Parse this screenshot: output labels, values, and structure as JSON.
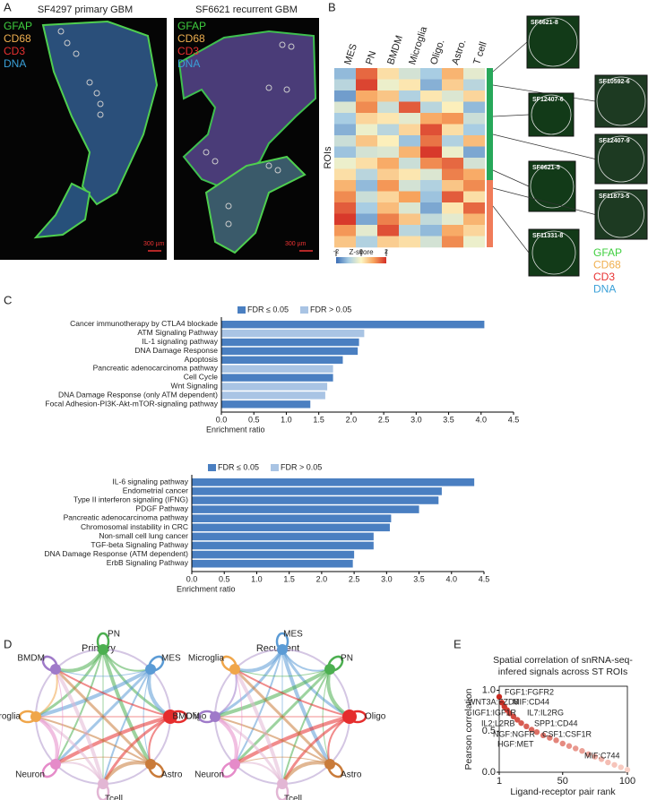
{
  "panel_labels": [
    "A",
    "B",
    "C",
    "D",
    "E"
  ],
  "panel_a": {
    "channels": [
      "GFAP",
      "CD68",
      "CD3",
      "DNA"
    ],
    "images": [
      {
        "title": "SF4297 primary GBM",
        "scale_bar": "300 µm"
      },
      {
        "title": "SF6621 recurrent GBM",
        "scale_bar": "300 µm"
      }
    ]
  },
  "panel_b": {
    "insets": [
      "SF6621-8",
      "SF10592-6",
      "SF12407-6",
      "SF12407-9",
      "SF6621-5",
      "SF11873-5",
      "SF11331-8"
    ],
    "channels": [
      "GFAP",
      "CD68",
      "CD3",
      "DNA"
    ]
  },
  "panel_d": {
    "networks": [
      {
        "title": "Primary",
        "nodes": [
          "PN",
          "MES",
          "Oligo",
          "Astro",
          "Tcell",
          "Neuron",
          "Microglia",
          "BMDM"
        ]
      },
      {
        "title": "Recurrent",
        "nodes": [
          "MES",
          "PN",
          "Oligo",
          "Astro",
          "Tcell",
          "Neuron",
          "BMDM",
          "Microglia"
        ]
      }
    ]
  },
  "chart_data": [
    {
      "type": "heatmap",
      "columns": [
        "MES",
        "PN",
        "BMDM",
        "Microglia",
        "Oligo.",
        "Astro.",
        "T cell"
      ],
      "ylabel": "ROIs",
      "colorbar_title": "Z-score",
      "zlim": [
        -2,
        2
      ],
      "zticks": [
        -2,
        0,
        2
      ],
      "values": [
        [
          -1.2,
          1.5,
          0.3,
          -0.5,
          -1.0,
          0.8,
          -0.3
        ],
        [
          -0.8,
          1.8,
          -0.2,
          0.2,
          -1.3,
          0.5,
          -0.8
        ],
        [
          -1.5,
          0.9,
          0.6,
          -0.9,
          0.2,
          -0.4,
          0.4
        ],
        [
          -0.4,
          1.2,
          -0.6,
          1.6,
          -0.8,
          0.1,
          -1.2
        ],
        [
          -1.0,
          0.4,
          0.2,
          -0.3,
          0.9,
          1.1,
          -0.6
        ],
        [
          -1.3,
          -0.2,
          -0.8,
          0.4,
          1.7,
          0.3,
          -1.0
        ],
        [
          -0.6,
          0.6,
          0.1,
          -1.1,
          1.4,
          -0.9,
          0.7
        ],
        [
          -1.1,
          -0.5,
          -0.4,
          0.8,
          1.9,
          -0.2,
          -1.4
        ],
        [
          -0.2,
          0.3,
          0.9,
          -0.6,
          1.2,
          1.5,
          -0.5
        ],
        [
          0.3,
          -0.8,
          0.5,
          0.2,
          -0.4,
          1.3,
          0.9
        ],
        [
          0.8,
          -1.2,
          1.1,
          -0.5,
          -0.9,
          0.6,
          1.2
        ],
        [
          1.2,
          -0.6,
          0.4,
          1.0,
          -1.1,
          1.6,
          0.3
        ],
        [
          1.6,
          -1.0,
          0.7,
          -0.4,
          -1.4,
          0.2,
          1.5
        ],
        [
          1.9,
          -1.4,
          1.3,
          0.6,
          -0.7,
          -0.3,
          0.8
        ],
        [
          1.1,
          -0.3,
          1.7,
          -0.8,
          -1.2,
          0.9,
          0.4
        ],
        [
          0.6,
          -0.9,
          0.5,
          0.3,
          -0.5,
          1.2,
          -0.2
        ]
      ]
    },
    {
      "type": "barh",
      "xlabel": "Enrichment ratio",
      "categories": [
        "Cancer immunotherapy by CTLA4 blockade",
        "ATM Signaling Pathway",
        "IL-1 signaling pathway",
        "DNA Damage Response",
        "Apoptosis",
        "Pancreatic adenocarcinoma pathway",
        "Cell Cycle",
        "Wnt Signaling",
        "DNA Damage Response (only ATM dependent)",
        "Focal Adhesion-PI3K-Akt-mTOR-signaling pathway"
      ],
      "series": [
        {
          "name": "FDR ≤ 0.05",
          "color": "#4a7fc1",
          "values": [
            4.05,
            null,
            2.12,
            2.1,
            1.87,
            null,
            1.72,
            null,
            null,
            1.37
          ]
        },
        {
          "name": "FDR > 0.05",
          "color": "#a9c4e4",
          "values": [
            null,
            2.2,
            null,
            null,
            null,
            1.72,
            null,
            1.63,
            1.6,
            null
          ]
        }
      ],
      "xlim": [
        0,
        4.5
      ],
      "xticks": [
        {
          "value": 0,
          "label": "0.0"
        },
        0.5,
        {
          "value": 1,
          "label": "1.0"
        },
        1.5,
        {
          "value": 2,
          "label": "2.0"
        },
        2.5,
        {
          "value": 3,
          "label": "3.0"
        },
        3.5,
        {
          "value": 4,
          "label": "4.0"
        },
        4.5
      ]
    },
    {
      "type": "barh",
      "xlabel": "Enrichment ratio",
      "categories": [
        "IL-6 signaling pathway",
        "Endometrial cancer",
        "Type II interferon signaling (IFNG)",
        "PDGF Pathway",
        "Pancreatic adenocarcinoma pathway",
        "Chromosomal instability in CRC",
        "Non-small cell lung cancer",
        "TGF-beta Signaling Pathway",
        "DNA Damage Response (ATM dependent)",
        "ErbB Signaling Pathway"
      ],
      "series": [
        {
          "name": "FDR ≤ 0.05",
          "color": "#4a7fc1",
          "values": [
            4.35,
            3.85,
            3.8,
            3.5,
            3.07,
            3.05,
            2.8,
            2.8,
            2.5,
            2.48
          ]
        },
        {
          "name": "FDR > 0.05",
          "color": "#a9c4e4",
          "values": [
            null,
            null,
            null,
            null,
            null,
            null,
            null,
            null,
            null,
            null
          ]
        }
      ],
      "xlim": [
        0,
        4.5
      ],
      "xticks": [
        {
          "value": 0,
          "label": "0.0"
        },
        0.5,
        {
          "value": 1,
          "label": "1.0"
        },
        1.5,
        {
          "value": 2,
          "label": "2.0"
        },
        2.5,
        {
          "value": 3,
          "label": "3.0"
        },
        3.5,
        {
          "value": 4,
          "label": "4.0"
        },
        4.5
      ]
    },
    {
      "type": "scatter",
      "title": [
        "Spatial correlation of snRNA-seq-",
        "infered signals across ST ROIs"
      ],
      "xlabel": "Ligand-receptor pair rank",
      "ylabel": "Pearson correlation",
      "x": [
        1,
        3,
        5,
        7,
        9,
        12,
        15,
        18,
        22,
        26,
        30,
        35,
        40,
        45,
        50,
        55,
        60,
        65,
        70,
        75,
        80,
        85,
        90,
        95,
        100
      ],
      "values": [
        0.92,
        0.85,
        0.8,
        0.76,
        0.72,
        0.68,
        0.64,
        0.6,
        0.56,
        0.52,
        0.49,
        0.45,
        0.42,
        0.39,
        0.35,
        0.32,
        0.29,
        0.26,
        0.22,
        0.19,
        0.16,
        0.12,
        0.09,
        0.06,
        0.03
      ],
      "xlim": [
        1,
        100
      ],
      "xticks": [
        1,
        50,
        100
      ],
      "ylim": [
        0,
        1.05
      ],
      "yticks": [
        {
          "value": 0,
          "label": "0.0"
        },
        0.5,
        {
          "value": 1,
          "label": "1.0"
        }
      ],
      "annotations": [
        "FGF1:FGFR2",
        "WNT3A:FZD8",
        "MIF:CD44",
        "IGF1:IGF1R",
        "IL7:IL2RG",
        "IL2:L2RB",
        "SPP1:CD44",
        "NGF:NGFR",
        "CSF1:CSF1R",
        "HGF:MET",
        "MIF:C744"
      ]
    }
  ]
}
